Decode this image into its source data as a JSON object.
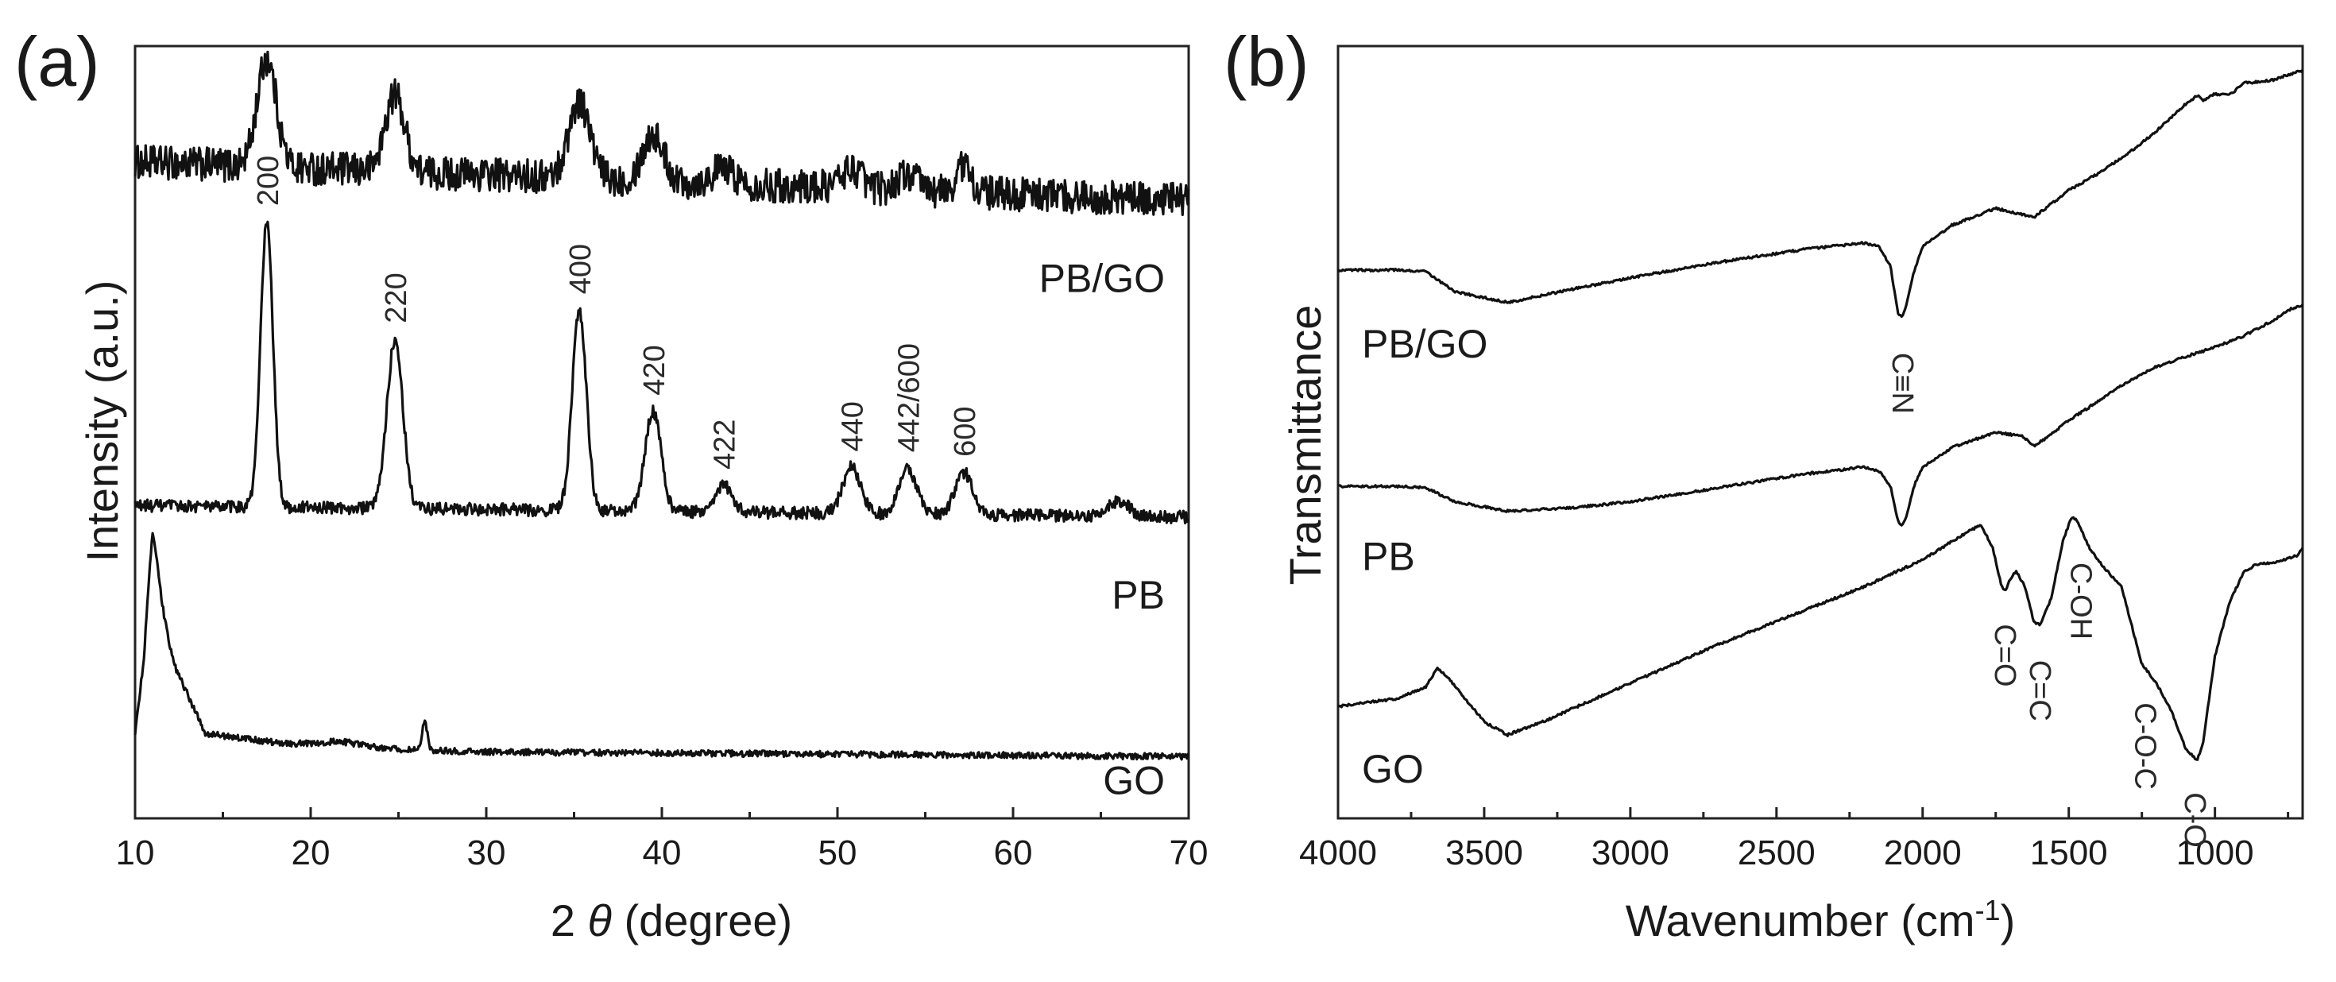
{
  "chart_data": [
    {
      "panel": "(a)",
      "type": "line",
      "xlabel_prefix": "2",
      "xlabel_theta": "θ",
      "xlabel_suffix": " (degree)",
      "ylabel": "Intensity (a.u.)",
      "xlim": [
        10,
        70
      ],
      "xticks": [
        10,
        20,
        30,
        40,
        50,
        60,
        70
      ],
      "series": [
        {
          "name": "PB/GO",
          "offset": 0.8,
          "noise": 0.022,
          "baseline": [
            [
              10,
              0.05
            ],
            [
              70,
              0.0
            ]
          ],
          "peaks": [
            [
              17.5,
              0.14,
              0.55
            ],
            [
              24.8,
              0.1,
              0.55
            ],
            [
              35.3,
              0.1,
              0.6
            ],
            [
              39.5,
              0.06,
              0.6
            ],
            [
              43.5,
              0.02,
              0.6
            ],
            [
              50.8,
              0.025,
              0.6
            ],
            [
              54.0,
              0.02,
              0.6
            ],
            [
              57.2,
              0.035,
              0.4
            ]
          ]
        },
        {
          "name": "PB",
          "offset": 0.39,
          "noise": 0.008,
          "baseline": [
            [
              10,
              0.015
            ],
            [
              70,
              0.0
            ]
          ],
          "peaks": [
            [
              17.5,
              0.37,
              0.35
            ],
            [
              24.8,
              0.22,
              0.45
            ],
            [
              35.3,
              0.26,
              0.4
            ],
            [
              39.5,
              0.13,
              0.45
            ],
            [
              43.5,
              0.035,
              0.5
            ],
            [
              50.8,
              0.06,
              0.5
            ],
            [
              54.0,
              0.06,
              0.5
            ],
            [
              57.2,
              0.055,
              0.5
            ],
            [
              66.0,
              0.02,
              0.6
            ]
          ]
        },
        {
          "name": "GO",
          "offset": 0.08,
          "noise": 0.004,
          "baseline": [
            [
              10,
              0.03
            ],
            [
              10.5,
              0.12
            ],
            [
              11.0,
              0.25
            ],
            [
              12.2,
              0.12
            ],
            [
              14.0,
              0.03
            ],
            [
              20.0,
              0.012
            ],
            [
              30.0,
              0.006
            ],
            [
              70.0,
              0.0
            ]
          ],
          "peaks": [
            [
              11.0,
              0.04,
              0.3
            ],
            [
              26.5,
              0.035,
              0.15
            ],
            [
              21.5,
              0.008,
              1.5
            ]
          ]
        }
      ],
      "peak_labels": [
        {
          "text": "200",
          "x": 17.5
        },
        {
          "text": "220",
          "x": 24.8
        },
        {
          "text": "400",
          "x": 35.3
        },
        {
          "text": "420",
          "x": 39.5
        },
        {
          "text": "422",
          "x": 43.5
        },
        {
          "text": "440",
          "x": 50.8
        },
        {
          "text": "442/600",
          "x": 54.0
        },
        {
          "text": "600",
          "x": 57.2
        }
      ]
    },
    {
      "panel": "(b)",
      "type": "line",
      "xlabel_prefix": "Wavenumber (cm",
      "xlabel_sup": "-1",
      "xlabel_suffix": ")",
      "ylabel": "Transmittance",
      "xlim": [
        4000,
        700
      ],
      "xticks": [
        4000,
        3500,
        3000,
        2500,
        2000,
        1500,
        1000
      ],
      "series": [
        {
          "name": "PB/GO",
          "points": [
            [
              4000,
              0.71
            ],
            [
              3800,
              0.71
            ],
            [
              3700,
              0.708
            ],
            [
              3600,
              0.682
            ],
            [
              3420,
              0.668
            ],
            [
              3200,
              0.685
            ],
            [
              3000,
              0.7
            ],
            [
              2700,
              0.72
            ],
            [
              2400,
              0.737
            ],
            [
              2200,
              0.745
            ],
            [
              2150,
              0.74
            ],
            [
              2110,
              0.715
            ],
            [
              2085,
              0.655
            ],
            [
              2070,
              0.648
            ],
            [
              2055,
              0.665
            ],
            [
              2030,
              0.708
            ],
            [
              2000,
              0.74
            ],
            [
              1900,
              0.768
            ],
            [
              1750,
              0.79
            ],
            [
              1660,
              0.782
            ],
            [
              1620,
              0.778
            ],
            [
              1580,
              0.79
            ],
            [
              1500,
              0.813
            ],
            [
              1400,
              0.835
            ],
            [
              1300,
              0.86
            ],
            [
              1200,
              0.89
            ],
            [
              1100,
              0.925
            ],
            [
              1060,
              0.936
            ],
            [
              1040,
              0.93
            ],
            [
              1000,
              0.938
            ],
            [
              950,
              0.937
            ],
            [
              900,
              0.952
            ],
            [
              800,
              0.956
            ],
            [
              750,
              0.963
            ],
            [
              700,
              0.968
            ]
          ]
        },
        {
          "name": "PB",
          "points": [
            [
              4000,
              0.43
            ],
            [
              3800,
              0.43
            ],
            [
              3700,
              0.428
            ],
            [
              3600,
              0.41
            ],
            [
              3420,
              0.398
            ],
            [
              3200,
              0.402
            ],
            [
              3000,
              0.41
            ],
            [
              2700,
              0.428
            ],
            [
              2400,
              0.446
            ],
            [
              2200,
              0.455
            ],
            [
              2150,
              0.45
            ],
            [
              2110,
              0.43
            ],
            [
              2085,
              0.385
            ],
            [
              2070,
              0.38
            ],
            [
              2055,
              0.392
            ],
            [
              2030,
              0.43
            ],
            [
              2000,
              0.455
            ],
            [
              1900,
              0.48
            ],
            [
              1750,
              0.5
            ],
            [
              1660,
              0.495
            ],
            [
              1620,
              0.482
            ],
            [
              1580,
              0.492
            ],
            [
              1500,
              0.515
            ],
            [
              1400,
              0.54
            ],
            [
              1300,
              0.565
            ],
            [
              1200,
              0.585
            ],
            [
              1100,
              0.598
            ],
            [
              1000,
              0.61
            ],
            [
              900,
              0.625
            ],
            [
              800,
              0.645
            ],
            [
              750,
              0.658
            ],
            [
              700,
              0.665
            ]
          ]
        },
        {
          "name": "GO",
          "points": [
            [
              4000,
              0.145
            ],
            [
              3800,
              0.155
            ],
            [
              3700,
              0.17
            ],
            [
              3660,
              0.195
            ],
            [
              3620,
              0.18
            ],
            [
              3500,
              0.125
            ],
            [
              3420,
              0.108
            ],
            [
              3300,
              0.125
            ],
            [
              3000,
              0.175
            ],
            [
              2700,
              0.225
            ],
            [
              2400,
              0.27
            ],
            [
              2200,
              0.3
            ],
            [
              2000,
              0.335
            ],
            [
              1850,
              0.37
            ],
            [
              1800,
              0.38
            ],
            [
              1760,
              0.35
            ],
            [
              1730,
              0.3
            ],
            [
              1715,
              0.295
            ],
            [
              1700,
              0.31
            ],
            [
              1680,
              0.32
            ],
            [
              1650,
              0.3
            ],
            [
              1620,
              0.255
            ],
            [
              1600,
              0.25
            ],
            [
              1560,
              0.285
            ],
            [
              1520,
              0.36
            ],
            [
              1490,
              0.39
            ],
            [
              1470,
              0.385
            ],
            [
              1430,
              0.35
            ],
            [
              1380,
              0.325
            ],
            [
              1320,
              0.3
            ],
            [
              1250,
              0.2
            ],
            [
              1200,
              0.175
            ],
            [
              1150,
              0.14
            ],
            [
              1100,
              0.09
            ],
            [
              1060,
              0.075
            ],
            [
              1040,
              0.1
            ],
            [
              1000,
              0.21
            ],
            [
              950,
              0.28
            ],
            [
              900,
              0.32
            ],
            [
              850,
              0.33
            ],
            [
              800,
              0.33
            ],
            [
              760,
              0.335
            ],
            [
              720,
              0.34
            ],
            [
              700,
              0.35
            ]
          ]
        }
      ],
      "peak_labels": [
        {
          "text": "C≡N",
          "x": 2070
        },
        {
          "text": "C=O",
          "x": 1720
        },
        {
          "text": "C=C",
          "x": 1600
        },
        {
          "text": "C-OH",
          "x": 1460
        },
        {
          "text": "C-O-C",
          "x": 1240
        },
        {
          "text": "C-O",
          "x": 1070
        }
      ]
    }
  ]
}
